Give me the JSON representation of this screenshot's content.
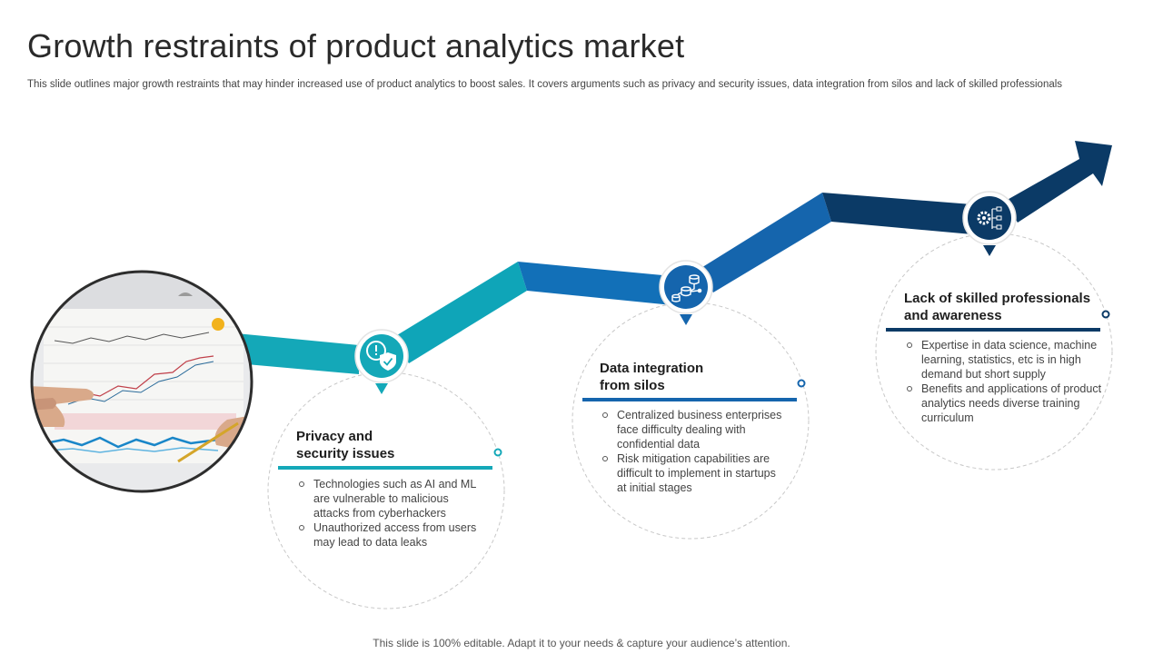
{
  "header": {
    "title": "Growth restraints of product analytics market",
    "subtitle": "This slide outlines major growth restraints that may hinder increased use of product analytics to boost sales. It covers arguments such as privacy and security issues, data integration from silos and  lack of skilled professionals"
  },
  "restraints": [
    {
      "title_line1": "Privacy and",
      "title_line2": "security issues",
      "icon": "shield-check-icon",
      "color": "#14a8b8",
      "points": [
        "Technologies  such as AI and ML are vulnerable  to malicious attacks from cyberhackers",
        "Unauthorized access from users may lead to data leaks"
      ]
    },
    {
      "title_line1": "Data integration",
      "title_line2": "from silos",
      "icon": "database-network-icon",
      "color": "#1565ad",
      "points": [
        "Centralized business enterprises face difficulty dealing with confidential data",
        "Risk mitigation capabilities are difficult to implement in startups at initial stages"
      ]
    },
    {
      "title_line1": "Lack of skilled professionals",
      "title_line2": "and awareness",
      "icon": "gear-checklist-icon",
      "color": "#0b3a66",
      "points": [
        "Expertise in data science, machine learning, statistics, etc is in high demand but short supply",
        "Benefits and applications of product analytics needs diverse training curriculum"
      ]
    }
  ],
  "footer": {
    "text": "This slide is 100% editable. Adapt it to your needs & capture your audience’s attention."
  }
}
